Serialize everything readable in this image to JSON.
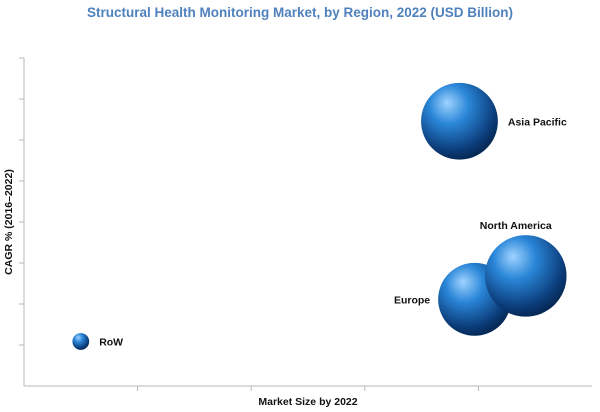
{
  "chart_data": {
    "type": "bubble",
    "title": "Structural Health Monitoring Market, by Region, 2022 (USD Billion)",
    "xlabel": "Market Size by 2022",
    "ylabel": "CAGR % (2016–2022)",
    "grid": false,
    "x_ticks": 5,
    "y_ticks": 8,
    "points": [
      {
        "name": "RoW",
        "x": 0.3,
        "y": 0.95,
        "size": 0.35,
        "label_side": "right"
      },
      {
        "name": "Europe",
        "x": 2.38,
        "y": 1.85,
        "size": 1.52,
        "label_side": "left"
      },
      {
        "name": "North America",
        "x": 2.65,
        "y": 2.35,
        "size": 1.7,
        "label_side": "top"
      },
      {
        "name": "Asia Pacific",
        "x": 2.3,
        "y": 5.65,
        "size": 1.6,
        "label_side": "right"
      }
    ]
  },
  "colors": {
    "title": "#4f81bd",
    "bubble_highlight": "#9fd3ff",
    "bubble_mid": "#2a86d8",
    "bubble_dark": "#0b3b78",
    "bubble_edge": "#062a57"
  }
}
